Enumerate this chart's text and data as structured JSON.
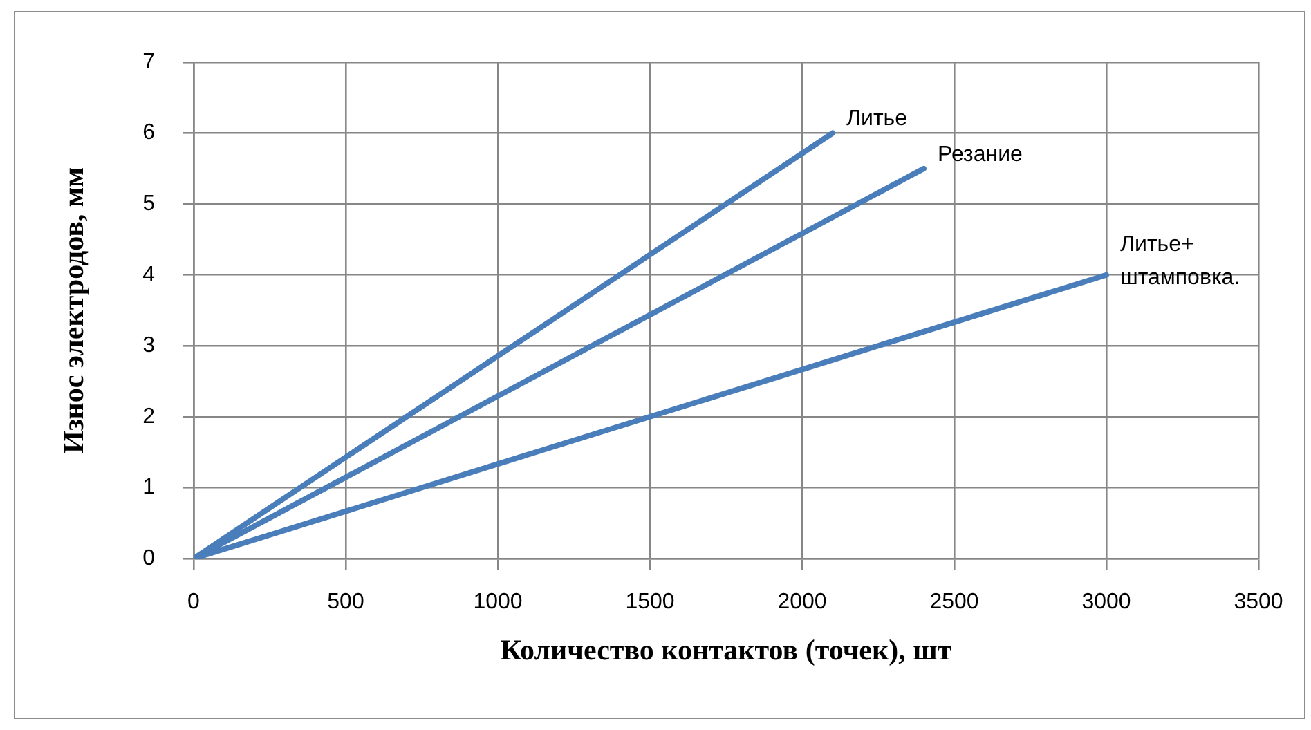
{
  "chart_data": {
    "type": "line",
    "xlabel": "Количество контактов (точек), шт",
    "ylabel": "Износ электродов, мм",
    "xlim": [
      0,
      3500
    ],
    "xticks": [
      0,
      500,
      1000,
      1500,
      2000,
      2500,
      3000,
      3500
    ],
    "ylim": [
      0,
      7
    ],
    "yticks": [
      0,
      1,
      2,
      3,
      4,
      5,
      6,
      7
    ],
    "grid": true,
    "legend": false,
    "marker": "none",
    "line_style": "solid",
    "series": [
      {
        "name": "Литье",
        "color": "#4a7ebb",
        "x": [
          0,
          2100
        ],
        "values": [
          0,
          6
        ]
      },
      {
        "name": "Резание",
        "color": "#4a7ebb",
        "x": [
          0,
          2400
        ],
        "values": [
          0,
          5.5
        ]
      },
      {
        "name": "Литье+ штамповка.",
        "color": "#4a7ebb",
        "x": [
          0,
          3000
        ],
        "values": [
          0,
          4
        ]
      }
    ]
  }
}
